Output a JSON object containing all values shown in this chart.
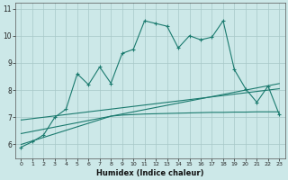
{
  "xlabel": "Humidex (Indice chaleur)",
  "x": [
    0,
    1,
    2,
    3,
    4,
    5,
    6,
    7,
    8,
    9,
    10,
    11,
    12,
    13,
    14,
    15,
    16,
    17,
    18,
    19,
    20,
    21,
    22,
    23
  ],
  "line1_y": [
    5.9,
    6.1,
    6.35,
    7.0,
    7.3,
    8.6,
    8.2,
    8.85,
    8.25,
    9.35,
    9.5,
    10.55,
    10.45,
    10.35,
    9.55,
    10.0,
    9.85,
    9.95,
    10.55,
    8.75,
    8.05,
    7.55,
    8.15,
    7.1
  ],
  "line2_y": [
    6.9,
    6.95,
    7.0,
    7.05,
    7.1,
    7.15,
    7.2,
    7.25,
    7.3,
    7.35,
    7.4,
    7.45,
    7.5,
    7.55,
    7.6,
    7.65,
    7.7,
    7.75,
    7.8,
    7.85,
    7.9,
    7.95,
    8.0,
    8.05
  ],
  "line3_y": [
    6.0,
    6.13,
    6.26,
    6.39,
    6.52,
    6.65,
    6.78,
    6.91,
    7.04,
    7.08,
    7.1,
    7.12,
    7.13,
    7.14,
    7.15,
    7.16,
    7.17,
    7.18,
    7.18,
    7.19,
    7.19,
    7.2,
    7.2,
    7.2
  ],
  "line4_y": [
    6.4,
    6.48,
    6.56,
    6.64,
    6.72,
    6.8,
    6.88,
    6.96,
    7.04,
    7.12,
    7.2,
    7.28,
    7.36,
    7.44,
    7.52,
    7.6,
    7.68,
    7.76,
    7.84,
    7.92,
    8.0,
    8.08,
    8.16,
    8.24
  ],
  "line_color": "#1a7a6e",
  "bg_color": "#cce8e8",
  "grid_color": "#a8c8c8",
  "ylim": [
    5.5,
    11.2
  ],
  "yticks": [
    6,
    7,
    8,
    9,
    10,
    11
  ],
  "xlim": [
    -0.5,
    23.5
  ]
}
